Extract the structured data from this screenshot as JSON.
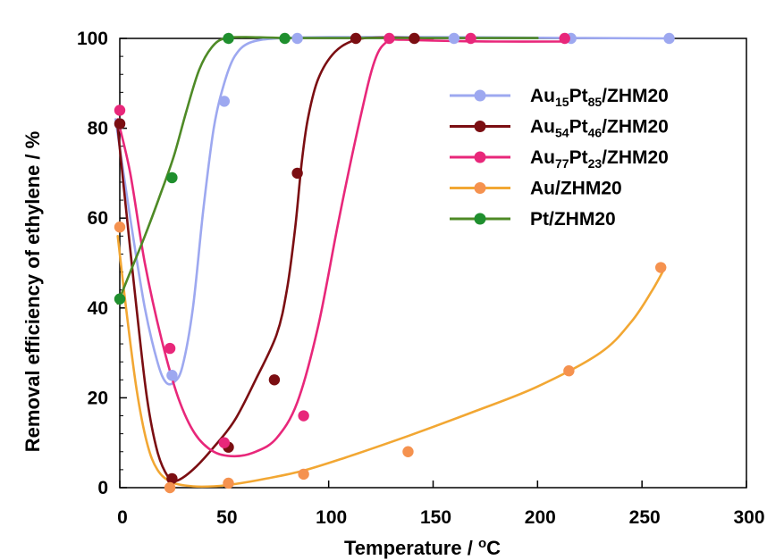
{
  "chart_data": {
    "type": "scatter",
    "xlabel": "Temperature / ",
    "xlabel_unit": "oC",
    "ylabel": "Removal efficiency of ethylene / %",
    "xlim": [
      0,
      300
    ],
    "ylim": [
      0,
      100
    ],
    "xticks": [
      "0",
      "50",
      "100",
      "150",
      "200",
      "250",
      "300"
    ],
    "yticks": [
      "0",
      "20",
      "40",
      "60",
      "80",
      "100"
    ],
    "legend_position": "top-right",
    "grid": false,
    "series": [
      {
        "name": "Au15Pt85/ZHM20",
        "legend_parts": [
          [
            "Au",
            ""
          ],
          [
            "15",
            "sub"
          ],
          [
            "Pt",
            ""
          ],
          [
            "85",
            "sub"
          ],
          [
            "/ZHM20",
            ""
          ]
        ],
        "color": "#9da8f0",
        "points": [
          [
            0,
            81
          ],
          [
            25,
            25
          ],
          [
            50,
            86
          ],
          [
            85,
            100
          ],
          [
            160,
            100
          ],
          [
            216,
            100
          ],
          [
            263,
            100
          ]
        ],
        "curve": [
          [
            -2,
            82
          ],
          [
            5,
            60
          ],
          [
            12,
            40
          ],
          [
            18,
            28
          ],
          [
            22,
            23.5
          ],
          [
            26,
            23.5
          ],
          [
            30,
            27
          ],
          [
            35,
            40
          ],
          [
            40,
            62
          ],
          [
            45,
            80
          ],
          [
            50,
            90
          ],
          [
            55,
            96
          ],
          [
            62,
            99
          ],
          [
            75,
            100
          ],
          [
            100,
            100.3
          ],
          [
            150,
            100.3
          ],
          [
            215,
            100.1
          ],
          [
            262,
            100
          ]
        ]
      },
      {
        "name": "Au54Pt46/ZHM20",
        "legend_parts": [
          [
            "Au",
            ""
          ],
          [
            "54",
            "sub"
          ],
          [
            "Pt",
            ""
          ],
          [
            "46",
            "sub"
          ],
          [
            "/ZHM20",
            ""
          ]
        ],
        "color": "#7b0e12",
        "points": [
          [
            0,
            81
          ],
          [
            25,
            2
          ],
          [
            52,
            9
          ],
          [
            74,
            24
          ],
          [
            85,
            70
          ],
          [
            113,
            100
          ],
          [
            141,
            100
          ]
        ],
        "curve": [
          [
            -1,
            80
          ],
          [
            3,
            62
          ],
          [
            8,
            40
          ],
          [
            13,
            20
          ],
          [
            18,
            8
          ],
          [
            23,
            2.5
          ],
          [
            27,
            1.5
          ],
          [
            35,
            4
          ],
          [
            45,
            9
          ],
          [
            55,
            15
          ],
          [
            65,
            24
          ],
          [
            75,
            34
          ],
          [
            80,
            44
          ],
          [
            84,
            58
          ],
          [
            87,
            72
          ],
          [
            90,
            82
          ],
          [
            95,
            91
          ],
          [
            103,
            97
          ],
          [
            113,
            99.7
          ],
          [
            125,
            100.2
          ],
          [
            141,
            100.1
          ],
          [
            150,
            100
          ]
        ]
      },
      {
        "name": "Au77Pt23/ZHM20",
        "legend_parts": [
          [
            "Au",
            ""
          ],
          [
            "77",
            "sub"
          ],
          [
            "Pt",
            ""
          ],
          [
            "23",
            "sub"
          ],
          [
            "/ZHM20",
            ""
          ]
        ],
        "color": "#e8277a",
        "points": [
          [
            0,
            84
          ],
          [
            24,
            31
          ],
          [
            50,
            10
          ],
          [
            88,
            16
          ],
          [
            129,
            100
          ],
          [
            168,
            100
          ],
          [
            213,
            100
          ]
        ],
        "curve": [
          [
            -1,
            82
          ],
          [
            5,
            70
          ],
          [
            12,
            50
          ],
          [
            20,
            33
          ],
          [
            28,
            20
          ],
          [
            36,
            12
          ],
          [
            45,
            8
          ],
          [
            55,
            7
          ],
          [
            65,
            8
          ],
          [
            75,
            11
          ],
          [
            85,
            19
          ],
          [
            95,
            36
          ],
          [
            105,
            60
          ],
          [
            115,
            82
          ],
          [
            122,
            95
          ],
          [
            128,
            99.3
          ],
          [
            135,
            99.7
          ],
          [
            150,
            99.5
          ],
          [
            180,
            99.3
          ],
          [
            213,
            99.3
          ]
        ]
      },
      {
        "name": "Au/ZHM20",
        "legend_parts": [
          [
            "Au/ZHM20",
            ""
          ]
        ],
        "color": "#f5924f",
        "curve_color": "#f2a733",
        "points": [
          [
            0,
            58
          ],
          [
            24,
            0
          ],
          [
            52,
            1
          ],
          [
            88,
            3
          ],
          [
            138,
            8
          ],
          [
            215,
            26
          ],
          [
            259,
            49
          ]
        ],
        "curve": [
          [
            -1,
            56
          ],
          [
            3,
            40
          ],
          [
            8,
            22
          ],
          [
            13,
            10
          ],
          [
            18,
            4
          ],
          [
            25,
            1.2
          ],
          [
            35,
            0.3
          ],
          [
            45,
            0.3
          ],
          [
            55,
            0.8
          ],
          [
            70,
            2
          ],
          [
            88,
            3.8
          ],
          [
            110,
            7
          ],
          [
            138,
            11.5
          ],
          [
            170,
            17
          ],
          [
            200,
            22.5
          ],
          [
            230,
            30
          ],
          [
            245,
            37
          ],
          [
            255,
            44
          ],
          [
            261,
            49
          ]
        ]
      },
      {
        "name": "Pt/ZHM20",
        "legend_parts": [
          [
            "Pt/ZHM20",
            ""
          ]
        ],
        "color": "#1f8f2e",
        "curve_color": "#4e8a26",
        "points": [
          [
            0,
            42
          ],
          [
            25,
            69
          ],
          [
            52,
            100
          ],
          [
            79,
            100
          ]
        ],
        "curve": [
          [
            -1,
            41
          ],
          [
            5,
            48
          ],
          [
            12,
            56
          ],
          [
            20,
            66
          ],
          [
            26,
            74
          ],
          [
            32,
            84
          ],
          [
            38,
            93
          ],
          [
            44,
            98
          ],
          [
            50,
            100
          ],
          [
            60,
            100.3
          ],
          [
            79,
            100.1
          ],
          [
            120,
            100.1
          ],
          [
            200,
            100.1
          ]
        ]
      }
    ]
  }
}
